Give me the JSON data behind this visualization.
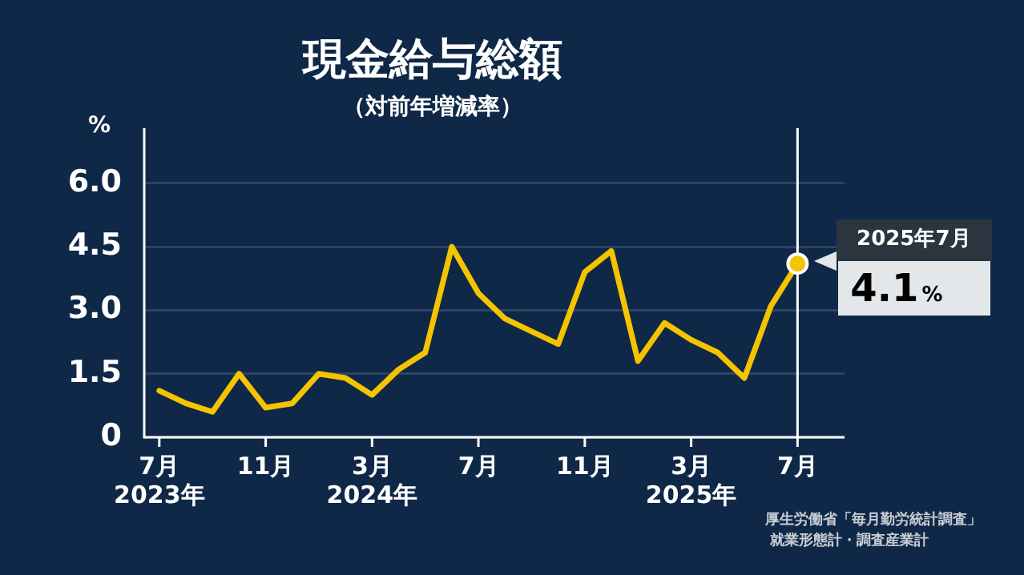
{
  "chart_data": {
    "type": "line",
    "title": "現金給与総額",
    "subtitle": "（対前年増減率）",
    "ylabel": "%",
    "x": [
      "2023-07",
      "2023-08",
      "2023-09",
      "2023-10",
      "2023-11",
      "2023-12",
      "2024-01",
      "2024-02",
      "2024-03",
      "2024-04",
      "2024-05",
      "2024-06",
      "2024-07",
      "2024-08",
      "2024-09",
      "2024-10",
      "2024-11",
      "2024-12",
      "2025-01",
      "2025-02",
      "2025-03",
      "2025-04",
      "2025-05",
      "2025-06",
      "2025-07"
    ],
    "series": [
      {
        "color": "#f5c400",
        "values": [
          1.1,
          0.8,
          0.6,
          1.5,
          0.7,
          0.8,
          1.5,
          1.4,
          1.0,
          1.6,
          2.0,
          4.5,
          3.4,
          2.8,
          2.5,
          2.2,
          3.9,
          4.4,
          1.8,
          2.7,
          2.3,
          2.0,
          1.4,
          3.1,
          4.1
        ],
        "value_labels": [
          null,
          null,
          null,
          null,
          null,
          null,
          null,
          null,
          null,
          null,
          null,
          null,
          null,
          null,
          null,
          null,
          null,
          null,
          null,
          null,
          null,
          null,
          null,
          null,
          "4.1%"
        ]
      }
    ],
    "xlim": [
      "2023-06-14",
      "2025-08-24"
    ],
    "xticks": [
      {
        "value": "2023-07",
        "label": "7月\n2023年"
      },
      {
        "value": "2023-11",
        "label": "11月"
      },
      {
        "value": "2024-03",
        "label": "3月\n2024年"
      },
      {
        "value": "2024-07",
        "label": "7月"
      },
      {
        "value": "2024-11",
        "label": "11月"
      },
      {
        "value": "2025-03",
        "label": "3月\n2025年"
      },
      {
        "value": "2025-07",
        "label": "7月"
      }
    ],
    "ylim": [
      0,
      7.3
    ],
    "yticks": [
      0,
      {
        "value": 1.5,
        "label": "1.5"
      },
      {
        "value": 3,
        "label": "3.0"
      },
      {
        "value": 4.5,
        "label": "4.5"
      },
      {
        "value": 6,
        "label": "6.0"
      }
    ],
    "grid": "y",
    "marker": "none",
    "line_style": "solid",
    "legend": false,
    "ref_lines": [
      {
        "axis": "x",
        "value": "2025-07",
        "color": "#ffffff"
      }
    ],
    "annotations": [
      {
        "text": "2025年7月",
        "x": "2025-07",
        "y": 4.1
      },
      "厚生労働省「毎月勤労統計調査」",
      "就業形態計・調査産業計"
    ]
  }
}
